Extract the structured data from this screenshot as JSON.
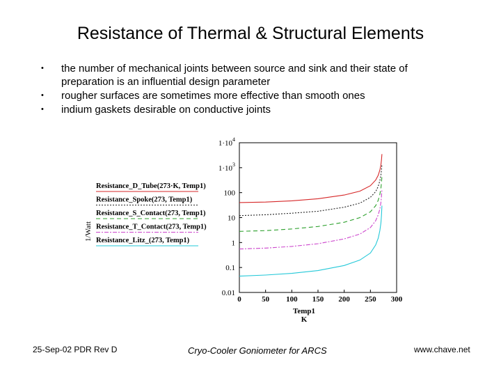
{
  "slide": {
    "title": "Resistance of Thermal & Structural Elements",
    "bullets": [
      "the number of mechanical joints between source and sink and their state of preparation is an influential design parameter",
      "rougher surfaces are sometimes more effective than smooth ones",
      "indium gaskets desirable on conductive joints"
    ],
    "footer_left": "25-Sep-02 PDR Rev D",
    "footer_center": "Cryo-Cooler Goniometer for ARCS",
    "footer_right": "www.chave.net"
  },
  "chart_data": {
    "type": "line",
    "title": "",
    "xlabel": "Temp1",
    "xunit": "K",
    "ylabel": "1/Watt",
    "yscale": "log",
    "xlim": [
      0,
      300
    ],
    "ylim": [
      0.01,
      10000
    ],
    "x_ticks": [
      "0",
      "50",
      "100",
      "150",
      "200",
      "250",
      "300"
    ],
    "y_ticks": [
      {
        "value": 10000,
        "base": "1·10",
        "exp": "4"
      },
      {
        "value": 1000,
        "base": "1·10",
        "exp": "3"
      },
      {
        "value": 100,
        "base": "100",
        "exp": ""
      },
      {
        "value": 10,
        "base": "10",
        "exp": ""
      },
      {
        "value": 1,
        "base": "1",
        "exp": ""
      },
      {
        "value": 0.1,
        "base": "0.1",
        "exp": ""
      },
      {
        "value": 0.01,
        "base": "0.01",
        "exp": ""
      }
    ],
    "grid": false,
    "legend_position": "left",
    "series": [
      {
        "name": "Resistance_D_Tube(273·K, Temp1)",
        "color": "#d62728",
        "dash": "",
        "x": [
          0,
          50,
          100,
          150,
          200,
          230,
          250,
          260,
          265,
          268,
          270,
          271,
          272
        ],
        "y": [
          40,
          42,
          47,
          57,
          80,
          115,
          190,
          320,
          500,
          800,
          1300,
          2000,
          3500
        ]
      },
      {
        "name": "Resistance_Spoke(273, Temp1)",
        "color": "#222222",
        "dash": "2,2",
        "x": [
          0,
          50,
          100,
          150,
          200,
          230,
          250,
          260,
          265,
          268,
          270,
          271,
          272
        ],
        "y": [
          12,
          13,
          15,
          18,
          26,
          38,
          65,
          110,
          180,
          300,
          500,
          800,
          1400
        ]
      },
      {
        "name": "Resistance_S_Contact(273, Temp1)",
        "color": "#2ca02c",
        "dash": "6,4",
        "x": [
          0,
          50,
          100,
          150,
          200,
          230,
          250,
          260,
          265,
          268,
          270,
          271,
          272
        ],
        "y": [
          2.8,
          3.0,
          3.5,
          4.4,
          6.5,
          10,
          17,
          30,
          50,
          85,
          150,
          250,
          450
        ]
      },
      {
        "name": "Resistance_T_Contact(273, Temp1)",
        "color": "#cc44cc",
        "dash": "6,2,2,2",
        "x": [
          0,
          50,
          100,
          150,
          200,
          230,
          250,
          260,
          265,
          268,
          270,
          271,
          272
        ],
        "y": [
          0.55,
          0.6,
          0.7,
          0.9,
          1.4,
          2.2,
          4,
          7.5,
          13,
          22,
          40,
          70,
          130
        ]
      },
      {
        "name": "Resistance_Litz_(273, Temp1)",
        "color": "#22c8d8",
        "dash": "",
        "x": [
          0,
          50,
          100,
          150,
          200,
          230,
          250,
          260,
          265,
          268,
          270,
          271,
          272
        ],
        "y": [
          0.045,
          0.05,
          0.058,
          0.075,
          0.12,
          0.2,
          0.38,
          0.8,
          1.5,
          3,
          6,
          12,
          30
        ]
      }
    ]
  }
}
